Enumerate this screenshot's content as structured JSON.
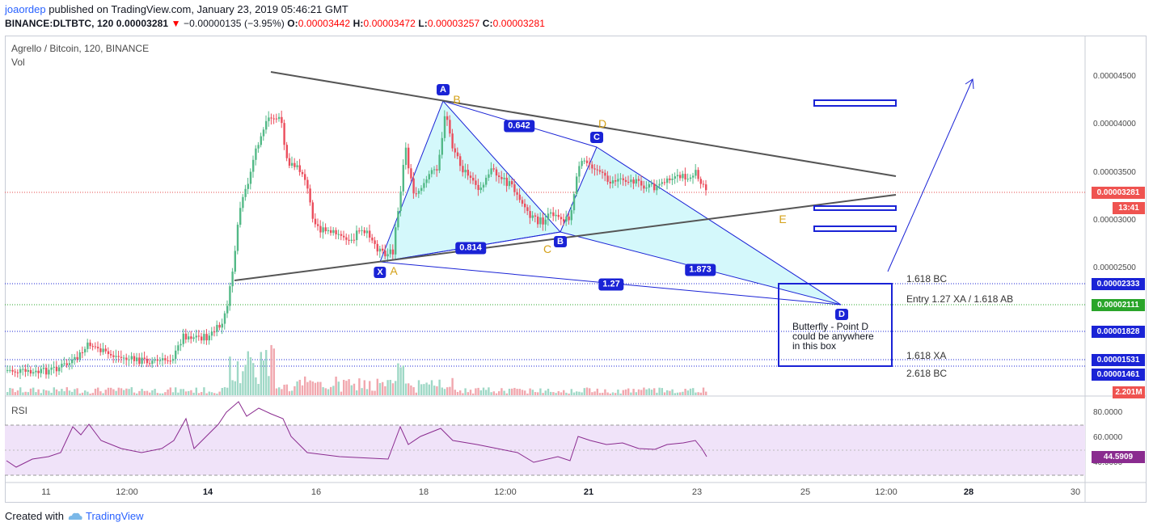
{
  "header": {
    "user": "joaordep",
    "published": "published on TradingView.com, January 23, 2019 05:46:21 GMT",
    "symbol_line_prefix": "BINANCE:DLTBTC, 120 0.00003281",
    "change_arrow": "▼",
    "change": "−0.00000135 (−3.95%)",
    "o_label": "O:",
    "o_value": "0.00003442",
    "h_label": "H:",
    "h_value": "0.00003472",
    "l_label": "L:",
    "l_value": "0.00003257",
    "c_label": "C:",
    "c_value": "0.00003281"
  },
  "legend": {
    "title": "Agrello / Bitcoin, 120, BINANCE",
    "vol": "Vol",
    "rsi": "RSI"
  },
  "price_axis": [
    "0.00004500",
    "0.00004000",
    "0.00003500",
    "0.00003000",
    "0.00002500"
  ],
  "price_boxes": {
    "last": "0.00003281",
    "countdown": "13:41",
    "bc1618": "0.00002333",
    "entry": "0.00002111",
    "b1828": "0.00001828",
    "xa1618": "0.00001531",
    "bc2618": "0.00001461",
    "vol": "2.201M"
  },
  "rsi_axis": [
    "80.0000",
    "60.0000",
    "40.0000"
  ],
  "rsi_value": "44.5909",
  "time_axis": [
    "11",
    "12:00",
    "14",
    "16",
    "18",
    "12:00",
    "21",
    "23",
    "25",
    "12:00",
    "28",
    "30"
  ],
  "levels": {
    "bc1618": "1.618 BC",
    "entry": "Entry 1.27 XA / 1.618 AB",
    "xa1618": "1.618 XA",
    "bc2618": "2.618 BC"
  },
  "pattern": {
    "points": {
      "x": "X",
      "a": "A",
      "b": "B",
      "c": "C",
      "d": "D"
    },
    "ratios": {
      "r0642": "0.642",
      "r0814": "0.814",
      "r1873": "1.873",
      "r127": "1.27"
    },
    "orange": {
      "a": "A",
      "b": "B",
      "c": "C",
      "d": "D",
      "e": "E"
    }
  },
  "note": "Butterfly - Point D could be anywhere in this box",
  "footer": {
    "created": "Created with",
    "brand": "TradingView"
  },
  "colors": {
    "up": "#53b987",
    "down": "#eb4d5c",
    "pattern": "#1a23d6",
    "fill": "#d4f8fb",
    "rsi": "#8a2b8f"
  }
}
